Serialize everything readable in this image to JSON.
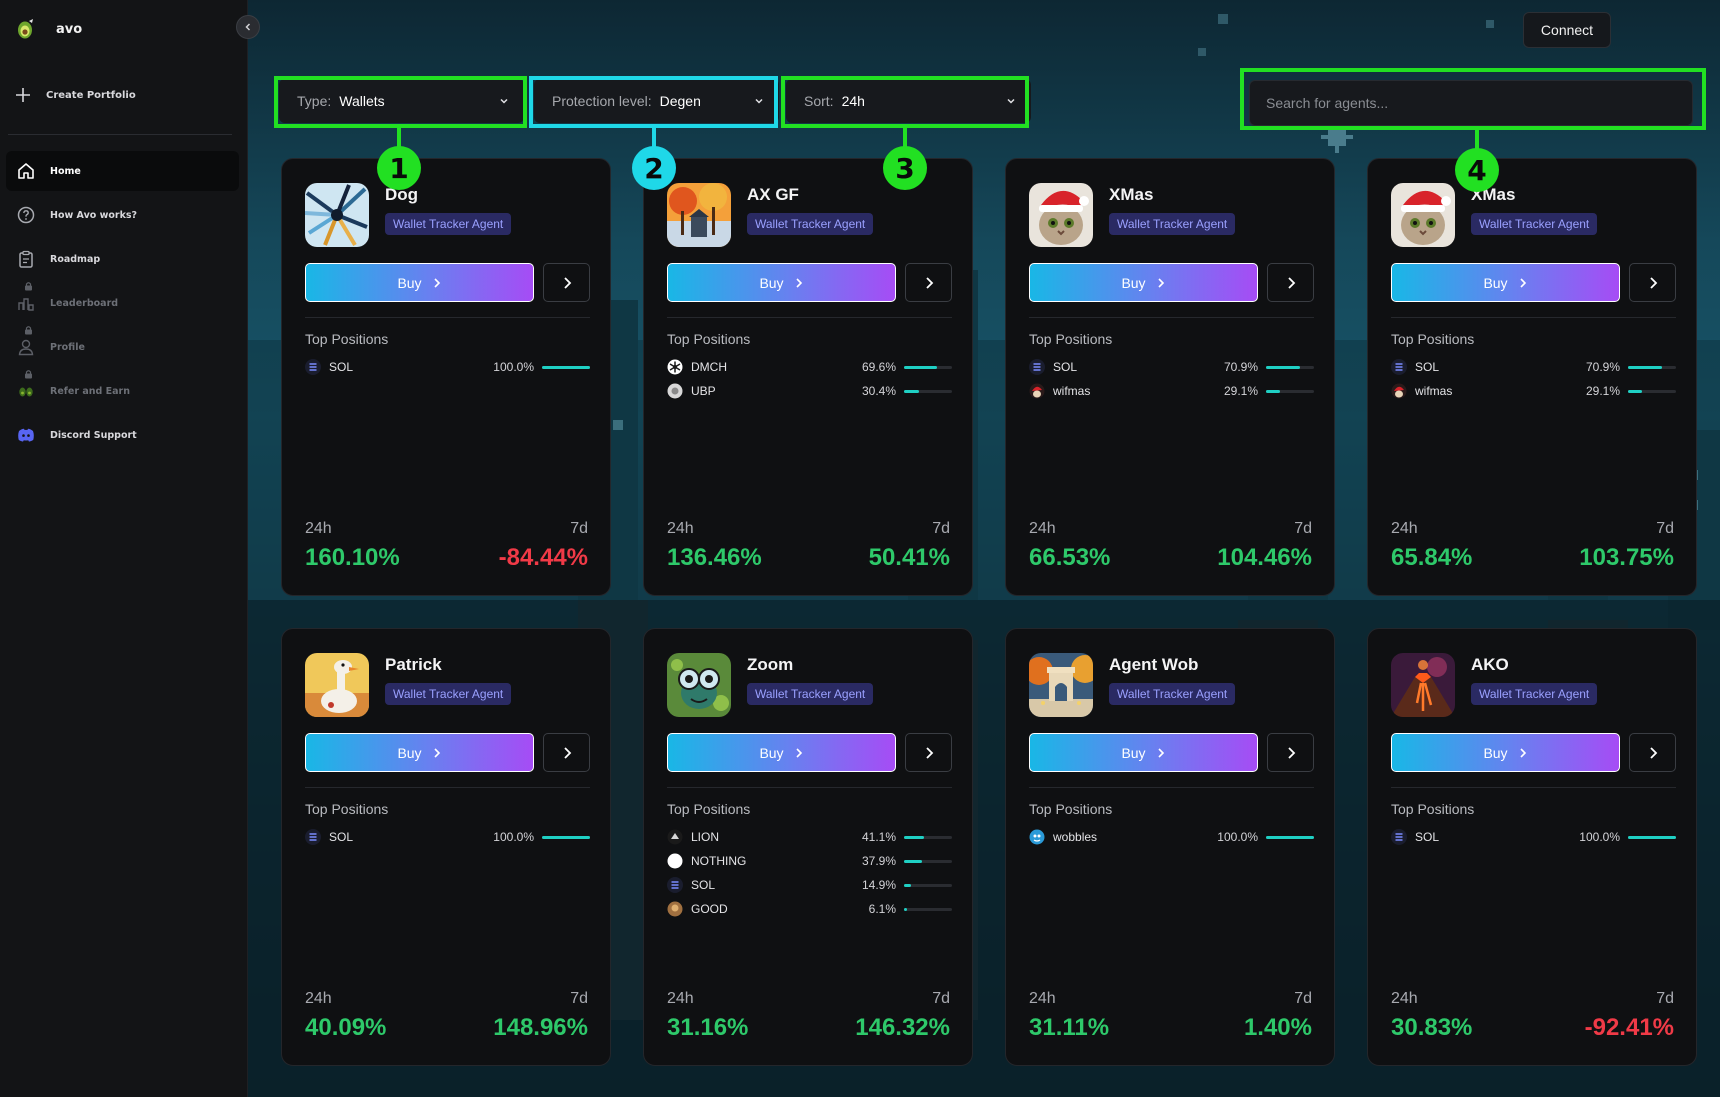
{
  "brand": {
    "name": "avo"
  },
  "sidebar": {
    "create_label": "Create Portfolio",
    "items": [
      {
        "label": "Home",
        "icon": "home-icon",
        "active": true,
        "locked": false
      },
      {
        "label": "How Avo works?",
        "icon": "question-icon",
        "active": false,
        "locked": false
      },
      {
        "label": "Roadmap",
        "icon": "clipboard-icon",
        "active": false,
        "locked": false
      },
      {
        "label": "Leaderboard",
        "icon": "bar-chart-icon",
        "active": false,
        "locked": true
      },
      {
        "label": "Profile",
        "icon": "user-icon",
        "active": false,
        "locked": true
      },
      {
        "label": "Refer and Earn",
        "icon": "avocado-icon",
        "active": false,
        "locked": true
      },
      {
        "label": "Discord Support",
        "icon": "discord-icon",
        "active": false,
        "locked": false
      }
    ]
  },
  "header": {
    "connect_label": "Connect"
  },
  "filters": {
    "type": {
      "label": "Type:",
      "value": "Wallets"
    },
    "protection": {
      "label": "Protection level:",
      "value": "Degen"
    },
    "sort": {
      "label": "Sort:",
      "value": "24h"
    }
  },
  "search": {
    "placeholder": "Search for agents..."
  },
  "annotations": [
    "1",
    "2",
    "3",
    "4"
  ],
  "colors": {
    "accent_green": "#22e022",
    "accent_cyan": "#1fd8e8",
    "positive": "#2ec96a",
    "negative": "#f03a47",
    "bar": "#1fd0c4"
  },
  "labels": {
    "buy": "Buy",
    "top_positions": "Top Positions",
    "h24": "24h",
    "d7": "7d"
  },
  "cards": [
    {
      "name": "Dog",
      "tag": "Wallet Tracker Agent",
      "avatar": "dog-avatar",
      "positions": [
        {
          "token": "SOL",
          "pct": "100.0%",
          "fill": 1.0,
          "icon": "sol"
        }
      ],
      "change_24h": "160.10%",
      "change_7d": "-84.44%"
    },
    {
      "name": "AX GF",
      "tag": "Wallet Tracker Agent",
      "avatar": "axgf-avatar",
      "positions": [
        {
          "token": "DMCH",
          "pct": "69.6%",
          "fill": 0.696,
          "icon": "dmch"
        },
        {
          "token": "UBP",
          "pct": "30.4%",
          "fill": 0.304,
          "icon": "ubp"
        }
      ],
      "change_24h": "136.46%",
      "change_7d": "50.41%"
    },
    {
      "name": "XMas",
      "tag": "Wallet Tracker Agent",
      "avatar": "xmas-avatar",
      "positions": [
        {
          "token": "SOL",
          "pct": "70.9%",
          "fill": 0.709,
          "icon": "sol"
        },
        {
          "token": "wifmas",
          "pct": "29.1%",
          "fill": 0.291,
          "icon": "wifmas"
        }
      ],
      "change_24h": "66.53%",
      "change_7d": "104.46%"
    },
    {
      "name": "XMas",
      "tag": "Wallet Tracker Agent",
      "avatar": "xmas-avatar",
      "positions": [
        {
          "token": "SOL",
          "pct": "70.9%",
          "fill": 0.709,
          "icon": "sol"
        },
        {
          "token": "wifmas",
          "pct": "29.1%",
          "fill": 0.291,
          "icon": "wifmas"
        }
      ],
      "change_24h": "65.84%",
      "change_7d": "103.75%"
    },
    {
      "name": "Patrick",
      "tag": "Wallet Tracker Agent",
      "avatar": "patrick-avatar",
      "positions": [
        {
          "token": "SOL",
          "pct": "100.0%",
          "fill": 1.0,
          "icon": "sol"
        }
      ],
      "change_24h": "40.09%",
      "change_7d": "148.96%"
    },
    {
      "name": "Zoom",
      "tag": "Wallet Tracker Agent",
      "avatar": "zoom-avatar",
      "positions": [
        {
          "token": "LION",
          "pct": "41.1%",
          "fill": 0.411,
          "icon": "lion"
        },
        {
          "token": "NOTHING",
          "pct": "37.9%",
          "fill": 0.379,
          "icon": "nothing"
        },
        {
          "token": "SOL",
          "pct": "14.9%",
          "fill": 0.149,
          "icon": "sol"
        },
        {
          "token": "GOOD",
          "pct": "6.1%",
          "fill": 0.061,
          "icon": "good"
        }
      ],
      "change_24h": "31.16%",
      "change_7d": "146.32%"
    },
    {
      "name": "Agent Wob",
      "tag": "Wallet Tracker Agent",
      "avatar": "wob-avatar",
      "positions": [
        {
          "token": "wobbles",
          "pct": "100.0%",
          "fill": 1.0,
          "icon": "wobbles"
        }
      ],
      "change_24h": "31.11%",
      "change_7d": "1.40%"
    },
    {
      "name": "AKO",
      "tag": "Wallet Tracker Agent",
      "avatar": "ako-avatar",
      "positions": [
        {
          "token": "SOL",
          "pct": "100.0%",
          "fill": 1.0,
          "icon": "sol"
        }
      ],
      "change_24h": "30.83%",
      "change_7d": "-92.41%"
    }
  ]
}
